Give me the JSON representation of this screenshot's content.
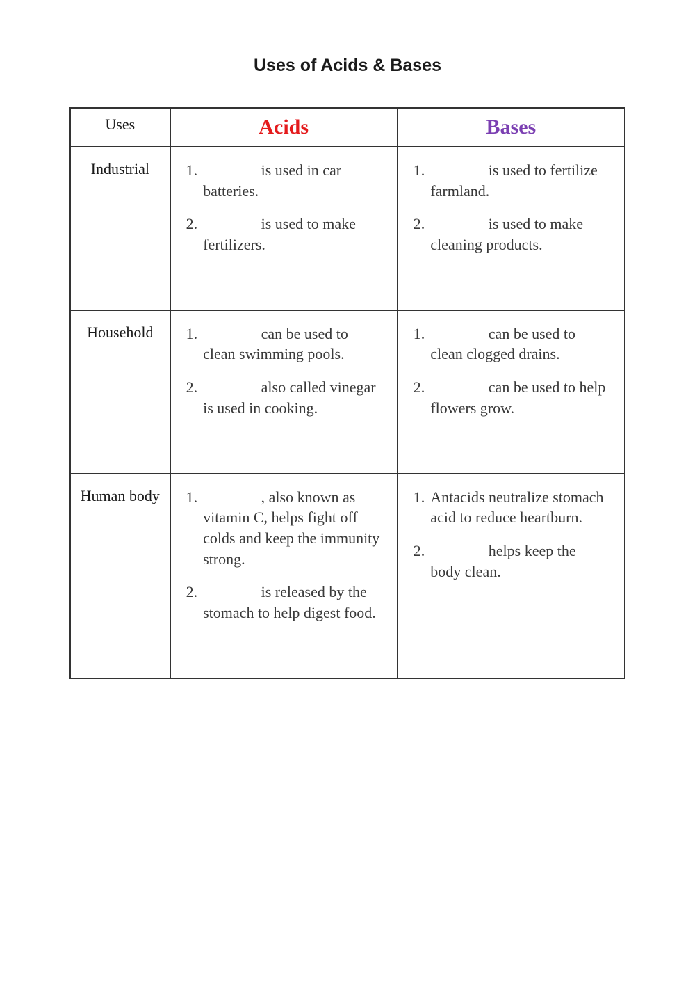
{
  "title": "Uses of Acids & Bases",
  "colors": {
    "acids": "#e41a1c",
    "bases": "#7b3fb2",
    "text": "#3a3a3a",
    "border": "#333333",
    "bg": "#ffffff"
  },
  "headers": {
    "uses": "Uses",
    "acids": "Acids",
    "bases": "Bases"
  },
  "rows": [
    {
      "label": "Industrial",
      "acids": [
        {
          "num": "1.",
          "pre": "",
          "blank": true,
          "post": "is used in car batteries."
        },
        {
          "num": "2.",
          "pre": "",
          "blank": true,
          "post": "is used to make fertilizers."
        }
      ],
      "bases": [
        {
          "num": "1.",
          "pre": "",
          "blank": true,
          "post": "is used to fertilize farmland."
        },
        {
          "num": "2.",
          "pre": "",
          "blank": true,
          "post": "is used to make cleaning products."
        }
      ]
    },
    {
      "label": "Household",
      "acids": [
        {
          "num": "1.",
          "pre": "",
          "blank": true,
          "post": "can be used to clean swimming pools."
        },
        {
          "num": "2.",
          "pre": "",
          "blank": true,
          "post": "also called vinegar is used in cooking."
        }
      ],
      "bases": [
        {
          "num": "1.",
          "pre": "",
          "blank": true,
          "post": "can be used to clean clogged drains."
        },
        {
          "num": "2.",
          "pre": "",
          "blank": true,
          "post": "can be used to help flowers grow."
        }
      ]
    },
    {
      "label": "Human body",
      "acids": [
        {
          "num": "1.",
          "pre": "",
          "blank": true,
          "post": ", also known as vitamin C, helps fight off colds and keep the immunity strong."
        },
        {
          "num": "2.",
          "pre": "",
          "blank": true,
          "post": "is released by the stomach to help digest food."
        }
      ],
      "bases": [
        {
          "num": "1.",
          "pre": "Antacids neutralize stomach acid to reduce heartburn.",
          "blank": false,
          "post": ""
        },
        {
          "num": "2.",
          "pre": "",
          "blank": true,
          "post": "helps keep the body clean."
        }
      ]
    }
  ]
}
